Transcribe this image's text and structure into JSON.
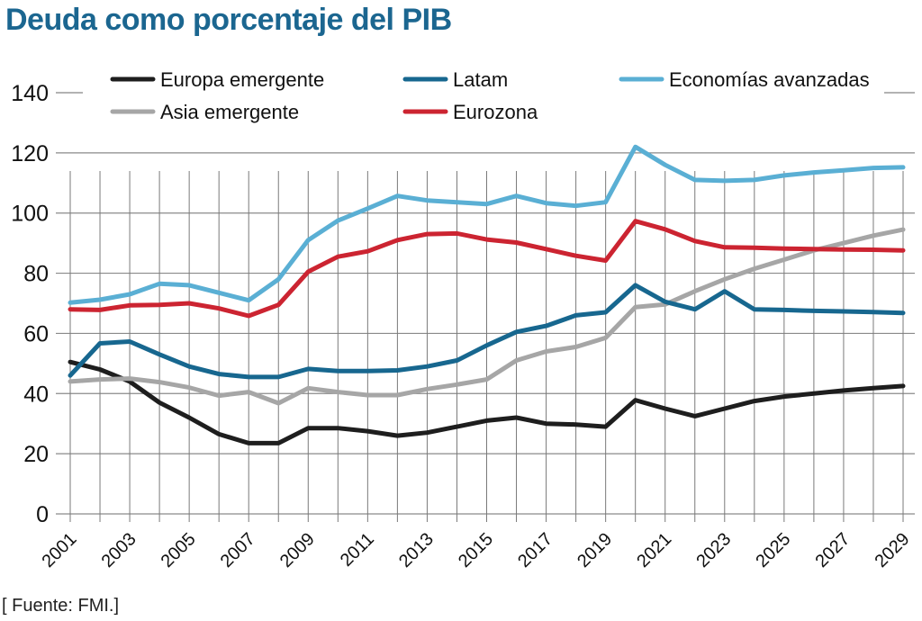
{
  "header": {
    "title": "Deuda como porcentaje del PIB"
  },
  "footer": {
    "source": "[ Fuente: FMI.]"
  },
  "chart_data": {
    "type": "line",
    "title": "Deuda como porcentaje del PIB",
    "xlabel": "",
    "ylabel": "",
    "ylim": [
      0,
      140
    ],
    "yticks": [
      0,
      20,
      40,
      60,
      80,
      100,
      120,
      140
    ],
    "x": [
      2001,
      2002,
      2003,
      2004,
      2005,
      2006,
      2007,
      2008,
      2009,
      2010,
      2011,
      2012,
      2013,
      2014,
      2015,
      2016,
      2017,
      2018,
      2019,
      2020,
      2021,
      2022,
      2023,
      2024,
      2025,
      2026,
      2027,
      2028,
      2029
    ],
    "xtick_labels": [
      "2001",
      "2003",
      "2005",
      "2007",
      "2009",
      "2011",
      "2013",
      "2015",
      "2017",
      "2019",
      "2021",
      "2023",
      "2025",
      "2027",
      "2029"
    ],
    "grid": true,
    "legend_position": "top",
    "series": [
      {
        "name": "Europa emergente",
        "color": "#1e1e1e",
        "values": [
          50.5,
          48,
          44,
          37,
          32,
          26.5,
          23.5,
          23.5,
          28.5,
          28.5,
          27.5,
          26,
          27,
          29,
          31,
          32,
          30,
          29.7,
          29,
          37.8,
          35,
          32.5,
          35,
          37.5,
          39,
          40,
          41,
          41.8,
          42.5
        ]
      },
      {
        "name": "Asia emergente",
        "color": "#a6a6a6",
        "values": [
          44,
          44.7,
          45,
          43.8,
          42,
          39.3,
          40.5,
          36.8,
          41.8,
          40.5,
          39.5,
          39.5,
          41.5,
          43,
          44.7,
          51,
          54,
          55.5,
          58.5,
          68.7,
          69.6,
          74,
          78,
          81.5,
          84.5,
          87.6,
          90,
          92.5,
          94.5
        ]
      },
      {
        "name": "Latam",
        "color": "#17678f",
        "values": [
          46,
          56.7,
          57.3,
          53,
          49,
          46.5,
          45.5,
          45.5,
          48.2,
          47.5,
          47.5,
          47.7,
          49,
          51,
          56,
          60.5,
          62.5,
          66,
          67,
          76,
          70.5,
          68,
          74,
          68,
          67.8,
          67.5,
          67.3,
          67.1,
          66.8
        ]
      },
      {
        "name": "Eurozona",
        "color": "#cc2431",
        "values": [
          68,
          67.8,
          69.3,
          69.5,
          70,
          68.3,
          65.8,
          69.5,
          80.5,
          85.5,
          87.3,
          91,
          93,
          93.2,
          91.2,
          90.2,
          88,
          85.8,
          84.2,
          97.3,
          94.6,
          90.7,
          88.6,
          88.5,
          88.2,
          88,
          87.9,
          87.8,
          87.6
        ]
      },
      {
        "name": "Economías avanzadas",
        "color": "#5aafd4",
        "values": [
          70.2,
          71.2,
          73,
          76.5,
          76,
          73.5,
          71,
          78,
          91,
          97.5,
          101.5,
          105.7,
          104.2,
          103.6,
          103,
          105.7,
          103.3,
          102.4,
          103.6,
          122,
          116,
          111,
          110.7,
          111,
          112.5,
          113.5,
          114.2,
          115,
          115.2
        ]
      }
    ],
    "legend": [
      {
        "label": "Europa emergente",
        "color": "#1e1e1e"
      },
      {
        "label": "Latam",
        "color": "#17678f"
      },
      {
        "label": "Economías avanzadas",
        "color": "#5aafd4"
      },
      {
        "label": "Asia emergente",
        "color": "#a6a6a6"
      },
      {
        "label": "Eurozona",
        "color": "#cc2431"
      }
    ]
  }
}
